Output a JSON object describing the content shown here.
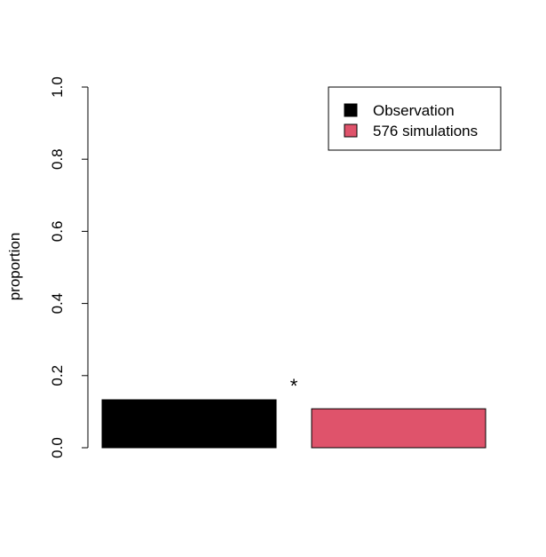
{
  "chart_data": {
    "type": "bar",
    "categories": [
      "Observation",
      "576 simulations"
    ],
    "values": [
      0.133,
      0.108
    ],
    "colors": [
      "#000000",
      "#DF536B"
    ],
    "ylabel": "proportion",
    "xlabel": "",
    "ylim": [
      0,
      1
    ],
    "yticks": [
      "0.0",
      "0.2",
      "0.4",
      "0.6",
      "0.8",
      "1.0"
    ],
    "grid": false,
    "legend": {
      "position": "top-right",
      "entries": [
        {
          "label": "Observation",
          "color": "#000000"
        },
        {
          "label": "576 simulations",
          "color": "#DF536B"
        }
      ]
    },
    "annotation": "*"
  }
}
